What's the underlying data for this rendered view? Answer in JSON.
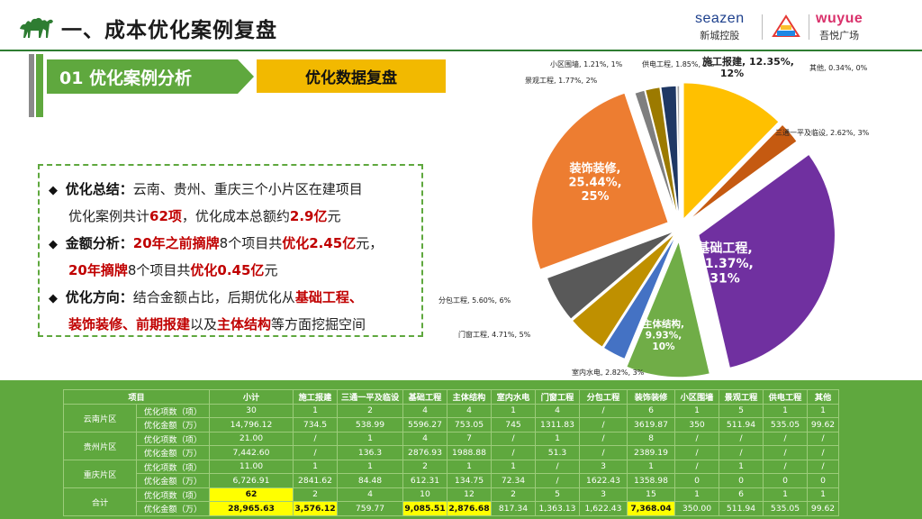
{
  "page": {
    "title": "一、成本优化案例复盘"
  },
  "logos": {
    "seazen_en": "seazen",
    "seazen_cn": "新城控股",
    "wuyue_en": "wuyue",
    "wuyue_cn": "吾悦广场"
  },
  "section": {
    "label": "01 优化案例分析",
    "subtitle": "优化数据复盘"
  },
  "summary": {
    "l1_head": "优化总结：",
    "l1_text": "云南、贵州、重庆三个小片区在建项目",
    "l2_a": "优化案例共计",
    "l2_count": "62项",
    "l2_b": "，优化成本总额约",
    "l2_total": "2.9亿",
    "l2_c": "元",
    "l3_head": "金额分析：",
    "l3_red1": "20年之前摘牌",
    "l3_a": "8个项目共",
    "l3_red2": "优化2.45亿",
    "l3_b": "元，",
    "l4_red1": "20年摘牌",
    "l4_a": "8个项目共",
    "l4_red2": "优化0.45亿",
    "l4_b": "元",
    "l5_head": "优化方向：",
    "l5_a": "结合金额占比，后期优化从",
    "l5_red": "基础工程、",
    "l6_red": "装饰装修、前期报建",
    "l6_a": "以及",
    "l6_red2": "主体结构",
    "l6_b": "等方面挖掘空间"
  },
  "colors": {
    "green": "#5fa83e",
    "yellow": "#f2b900",
    "red": "#c00000"
  },
  "chart_data": {
    "type": "pie",
    "title": "",
    "slices": [
      {
        "name": "施工报建",
        "value": 12.35,
        "label": "施工报建, 12.35%, 12%",
        "color": "#ffc000"
      },
      {
        "name": "三通一平及临设",
        "value": 2.62,
        "label": "三通一平及临设, 2.62%, 3%",
        "color": "#c55a11"
      },
      {
        "name": "基础工程",
        "value": 31.37,
        "label": "基础工程, 31.37%, 31%",
        "color": "#7030a0"
      },
      {
        "name": "主体结构",
        "value": 9.93,
        "label": "主体结构, 9.93%, 10%",
        "color": "#70ad47"
      },
      {
        "name": "室内水电",
        "value": 2.82,
        "label": "室内水电, 2.82%, 3%",
        "color": "#4472c4"
      },
      {
        "name": "门窗工程",
        "value": 4.71,
        "label": "门窗工程, 4.71%, 5%",
        "color": "#bf9000"
      },
      {
        "name": "分包工程",
        "value": 5.6,
        "label": "分包工程, 5.60%, 6%",
        "color": "#595959"
      },
      {
        "name": "装饰装修",
        "value": 25.44,
        "label": "装饰装修, 25.44%, 25%",
        "color": "#ed7d31"
      },
      {
        "name": "小区围墙",
        "value": 1.21,
        "label": "小区围墙, 1.21%, 1%",
        "color": "#7f7f7f"
      },
      {
        "name": "景观工程",
        "value": 1.77,
        "label": "景观工程, 1.77%, 2%",
        "color": "#9c7a00"
      },
      {
        "name": "供电工程",
        "value": 1.85,
        "label": "供电工程, 1.85%, 2%",
        "color": "#1f3864"
      },
      {
        "name": "其他",
        "value": 0.34,
        "label": "其他, 0.34%, 0%",
        "color": "#a5a5a5"
      }
    ]
  },
  "table": {
    "headers": [
      "项目",
      "小计",
      "施工报建",
      "三通一平及临设",
      "基础工程",
      "主体结构",
      "室内水电",
      "门窗工程",
      "分包工程",
      "装饰装修",
      "小区围墙",
      "景观工程",
      "供电工程",
      "其他"
    ],
    "groups": [
      {
        "region": "云南片区",
        "rows": [
          {
            "label": "优化项数（项）",
            "cells": [
              "30",
              "1",
              "2",
              "4",
              "4",
              "1",
              "4",
              "/",
              "6",
              "1",
              "5",
              "1",
              "1"
            ]
          },
          {
            "label": "优化金额（万）",
            "cells": [
              "14,796.12",
              "734.5",
              "538.99",
              "5596.27",
              "753.05",
              "745",
              "1311.83",
              "/",
              "3619.87",
              "350",
              "511.94",
              "535.05",
              "99.62"
            ]
          }
        ]
      },
      {
        "region": "贵州片区",
        "rows": [
          {
            "label": "优化项数（项）",
            "cells": [
              "21.00",
              "/",
              "1",
              "4",
              "7",
              "/",
              "1",
              "/",
              "8",
              "/",
              "/",
              "/",
              "/"
            ]
          },
          {
            "label": "优化金额（万）",
            "cells": [
              "7,442.60",
              "/",
              "136.3",
              "2876.93",
              "1988.88",
              "/",
              "51.3",
              "/",
              "2389.19",
              "/",
              "/",
              "/",
              "/"
            ]
          }
        ]
      },
      {
        "region": "重庆片区",
        "rows": [
          {
            "label": "优化项数（项）",
            "cells": [
              "11.00",
              "1",
              "1",
              "2",
              "1",
              "1",
              "/",
              "3",
              "1",
              "/",
              "1",
              "/",
              "/"
            ]
          },
          {
            "label": "优化金额（万）",
            "cells": [
              "6,726.91",
              "2841.62",
              "84.48",
              "612.31",
              "134.75",
              "72.34",
              "/",
              "1622.43",
              "1358.98",
              "0",
              "0",
              "0",
              "0"
            ]
          }
        ]
      },
      {
        "region": "合计",
        "rows": [
          {
            "label": "优化项数（项）",
            "cells": [
              "62",
              "2",
              "4",
              "10",
              "12",
              "2",
              "5",
              "3",
              "15",
              "1",
              "6",
              "1",
              "1"
            ]
          },
          {
            "label": "优化金额（万）",
            "cells": [
              "28,965.63",
              "3,576.12",
              "759.77",
              "9,085.51",
              "2,876.68",
              "817.34",
              "1,363.13",
              "1,622.43",
              "7,368.04",
              "350.00",
              "511.94",
              "535.05",
              "99.62"
            ]
          }
        ]
      }
    ]
  }
}
